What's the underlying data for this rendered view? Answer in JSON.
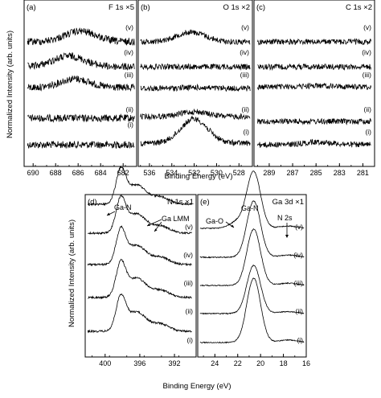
{
  "figure": {
    "top_ylabel": "Normalized Intensity (arb. units)",
    "top_xlabel": "Binding Energy (eV)",
    "bottom_ylabel": "Normalized Intensity (arb. units)",
    "bottom_xlabel": "Binding Energy (eV)",
    "curve_labels": [
      "(i)",
      "(ii)",
      "(iii)",
      "(iv)",
      "(v)"
    ]
  },
  "chart_data": [
    {
      "id": "a",
      "type": "line",
      "panel_label": "(a)",
      "title": "F 1s ×5",
      "xlim": [
        690.8,
        680.8
      ],
      "xticks": [
        690,
        688,
        686,
        684,
        682
      ],
      "series": [
        {
          "label": "(i)",
          "x": [
            690.5,
            681
          ],
          "y": [
            0,
            0
          ],
          "peaks": []
        },
        {
          "label": "(ii)",
          "x": [
            690.5,
            681
          ],
          "y": [
            0,
            0
          ],
          "peaks": []
        },
        {
          "label": "(iii)",
          "x": [
            690.5,
            681
          ],
          "y": [
            0,
            0
          ],
          "peaks": [
            {
              "center": 686.3,
              "height": 0.5,
              "width": 1.3
            }
          ]
        },
        {
          "label": "(iv)",
          "x": [
            690.5,
            681
          ],
          "y": [
            0,
            0
          ],
          "peaks": [
            {
              "center": 686.8,
              "height": 0.55,
              "width": 1.4
            }
          ]
        },
        {
          "label": "(v)",
          "x": [
            690.5,
            681
          ],
          "y": [
            0,
            0
          ],
          "peaks": [
            {
              "center": 685.8,
              "height": 0.6,
              "width": 1.4
            }
          ]
        }
      ]
    },
    {
      "id": "b",
      "type": "line",
      "panel_label": "(b)",
      "title": "O 1s ×2",
      "xlim": [
        537,
        526.8
      ],
      "xticks": [
        536,
        534,
        532,
        530,
        528
      ],
      "series": [
        {
          "label": "(i)",
          "x": [
            536.8,
            527
          ],
          "y": [
            0,
            0
          ],
          "peaks": [
            {
              "center": 532.0,
              "height": 1.0,
              "width": 1.2
            }
          ]
        },
        {
          "label": "(ii)",
          "x": [
            536.8,
            527
          ],
          "y": [
            0,
            0
          ],
          "peaks": [
            {
              "center": 532.0,
              "height": 0.5,
              "width": 1.2
            }
          ]
        },
        {
          "label": "(iii)",
          "x": [
            536.8,
            527
          ],
          "y": [
            0,
            0
          ],
          "peaks": [
            {
              "center": 532.0,
              "height": 0.15,
              "width": 1.2
            }
          ]
        },
        {
          "label": "(iv)",
          "x": [
            536.8,
            527
          ],
          "y": [
            0,
            0
          ],
          "peaks": []
        },
        {
          "label": "(v)",
          "x": [
            536.8,
            527
          ],
          "y": [
            0,
            0
          ],
          "peaks": [
            {
              "center": 532.3,
              "height": 0.6,
              "width": 1.3
            }
          ]
        }
      ]
    },
    {
      "id": "c",
      "type": "line",
      "panel_label": "(c)",
      "title": "C 1s ×2",
      "xlim": [
        290.3,
        280
      ],
      "xticks": [
        289,
        287,
        285,
        283,
        281
      ],
      "series": [
        {
          "label": "(i)",
          "x": [
            290,
            280.3
          ],
          "y": [
            0,
            0
          ],
          "peaks": [
            {
              "center": 284.8,
              "height": 0.25,
              "width": 1.2
            }
          ]
        },
        {
          "label": "(ii)",
          "x": [
            290,
            280.3
          ],
          "y": [
            0,
            0
          ],
          "peaks": []
        },
        {
          "label": "(iii)",
          "x": [
            290,
            280.3
          ],
          "y": [
            0,
            0
          ],
          "peaks": [
            {
              "center": 284.8,
              "height": 0.15,
              "width": 1.2
            }
          ]
        },
        {
          "label": "(iv)",
          "x": [
            290,
            280.3
          ],
          "y": [
            0,
            0
          ],
          "peaks": []
        },
        {
          "label": "(v)",
          "x": [
            290,
            280.3
          ],
          "y": [
            0,
            0
          ],
          "peaks": []
        }
      ]
    },
    {
      "id": "d",
      "type": "line",
      "panel_label": "(d)",
      "title": "N 1s ×1",
      "xlim": [
        402.3,
        389.5
      ],
      "xticks": [
        400,
        396,
        392
      ],
      "annotations": [
        {
          "text": "Ga-N",
          "x": 396.2
        },
        {
          "text": "Ga LMM",
          "x": 394.5
        }
      ],
      "series": [
        {
          "label": "(i)",
          "x": [
            402,
            390
          ],
          "y": [
            0,
            0
          ],
          "peaks": [
            {
              "center": 398.2,
              "height": 1.0,
              "width": 0.55
            },
            {
              "center": 396.4,
              "height": 0.6,
              "width": 1.1
            },
            {
              "center": 393.6,
              "height": 0.22,
              "width": 1.0
            }
          ]
        },
        {
          "label": "(ii)",
          "x": [
            402,
            390
          ],
          "y": [
            0,
            0
          ],
          "peaks": [
            {
              "center": 398.2,
              "height": 1.0,
              "width": 0.55
            },
            {
              "center": 396.4,
              "height": 0.6,
              "width": 1.1
            },
            {
              "center": 393.6,
              "height": 0.22,
              "width": 1.0
            }
          ]
        },
        {
          "label": "(iii)",
          "x": [
            402,
            390
          ],
          "y": [
            0,
            0
          ],
          "peaks": [
            {
              "center": 398.2,
              "height": 1.0,
              "width": 0.55
            },
            {
              "center": 396.4,
              "height": 0.6,
              "width": 1.1
            },
            {
              "center": 393.6,
              "height": 0.22,
              "width": 1.0
            }
          ]
        },
        {
          "label": "(iv)",
          "x": [
            402,
            390
          ],
          "y": [
            0,
            0
          ],
          "peaks": [
            {
              "center": 398.2,
              "height": 1.0,
              "width": 0.55
            },
            {
              "center": 396.4,
              "height": 0.6,
              "width": 1.1
            },
            {
              "center": 393.6,
              "height": 0.22,
              "width": 1.0
            }
          ]
        },
        {
          "label": "(v)",
          "x": [
            402,
            390
          ],
          "y": [
            0,
            0
          ],
          "peaks": [
            {
              "center": 398.2,
              "height": 1.0,
              "width": 0.55
            },
            {
              "center": 396.4,
              "height": 0.6,
              "width": 1.1
            },
            {
              "center": 393.6,
              "height": 0.22,
              "width": 1.0
            }
          ]
        }
      ]
    },
    {
      "id": "e",
      "type": "line",
      "panel_label": "(e)",
      "title": "Ga 3d ×1",
      "xlim": [
        25.5,
        16
      ],
      "xticks": [
        24,
        22,
        20,
        18,
        16
      ],
      "annotations": [
        {
          "text": "Ga-N",
          "x": 20.6
        },
        {
          "text": "Ga-O",
          "x": 22.0
        },
        {
          "text": "N 2s",
          "x": 17.5
        }
      ],
      "series": [
        {
          "label": "(i)",
          "x": [
            25.3,
            16.2
          ],
          "y": [
            0,
            0
          ],
          "peaks": [
            {
              "center": 20.6,
              "height": 1.0,
              "width": 0.6
            },
            {
              "center": 17.6,
              "height": 0.04,
              "width": 0.8
            }
          ]
        },
        {
          "label": "(ii)",
          "x": [
            25.3,
            16.2
          ],
          "y": [
            0,
            0
          ],
          "peaks": [
            {
              "center": 20.6,
              "height": 1.0,
              "width": 0.6
            },
            {
              "center": 17.6,
              "height": 0.04,
              "width": 0.8
            }
          ]
        },
        {
          "label": "(iii)",
          "x": [
            25.3,
            16.2
          ],
          "y": [
            0,
            0
          ],
          "peaks": [
            {
              "center": 20.6,
              "height": 1.0,
              "width": 0.6
            },
            {
              "center": 17.6,
              "height": 0.04,
              "width": 0.8
            }
          ]
        },
        {
          "label": "(iv)",
          "x": [
            25.3,
            16.2
          ],
          "y": [
            0,
            0
          ],
          "peaks": [
            {
              "center": 20.6,
              "height": 1.0,
              "width": 0.6
            },
            {
              "center": 17.6,
              "height": 0.04,
              "width": 0.8
            }
          ]
        },
        {
          "label": "(v)",
          "x": [
            25.3,
            16.2
          ],
          "y": [
            0,
            0
          ],
          "peaks": [
            {
              "center": 20.6,
              "height": 1.0,
              "width": 0.6
            },
            {
              "center": 22.0,
              "height": 0.12,
              "width": 0.7
            },
            {
              "center": 17.6,
              "height": 0.04,
              "width": 0.8
            }
          ]
        }
      ]
    }
  ]
}
